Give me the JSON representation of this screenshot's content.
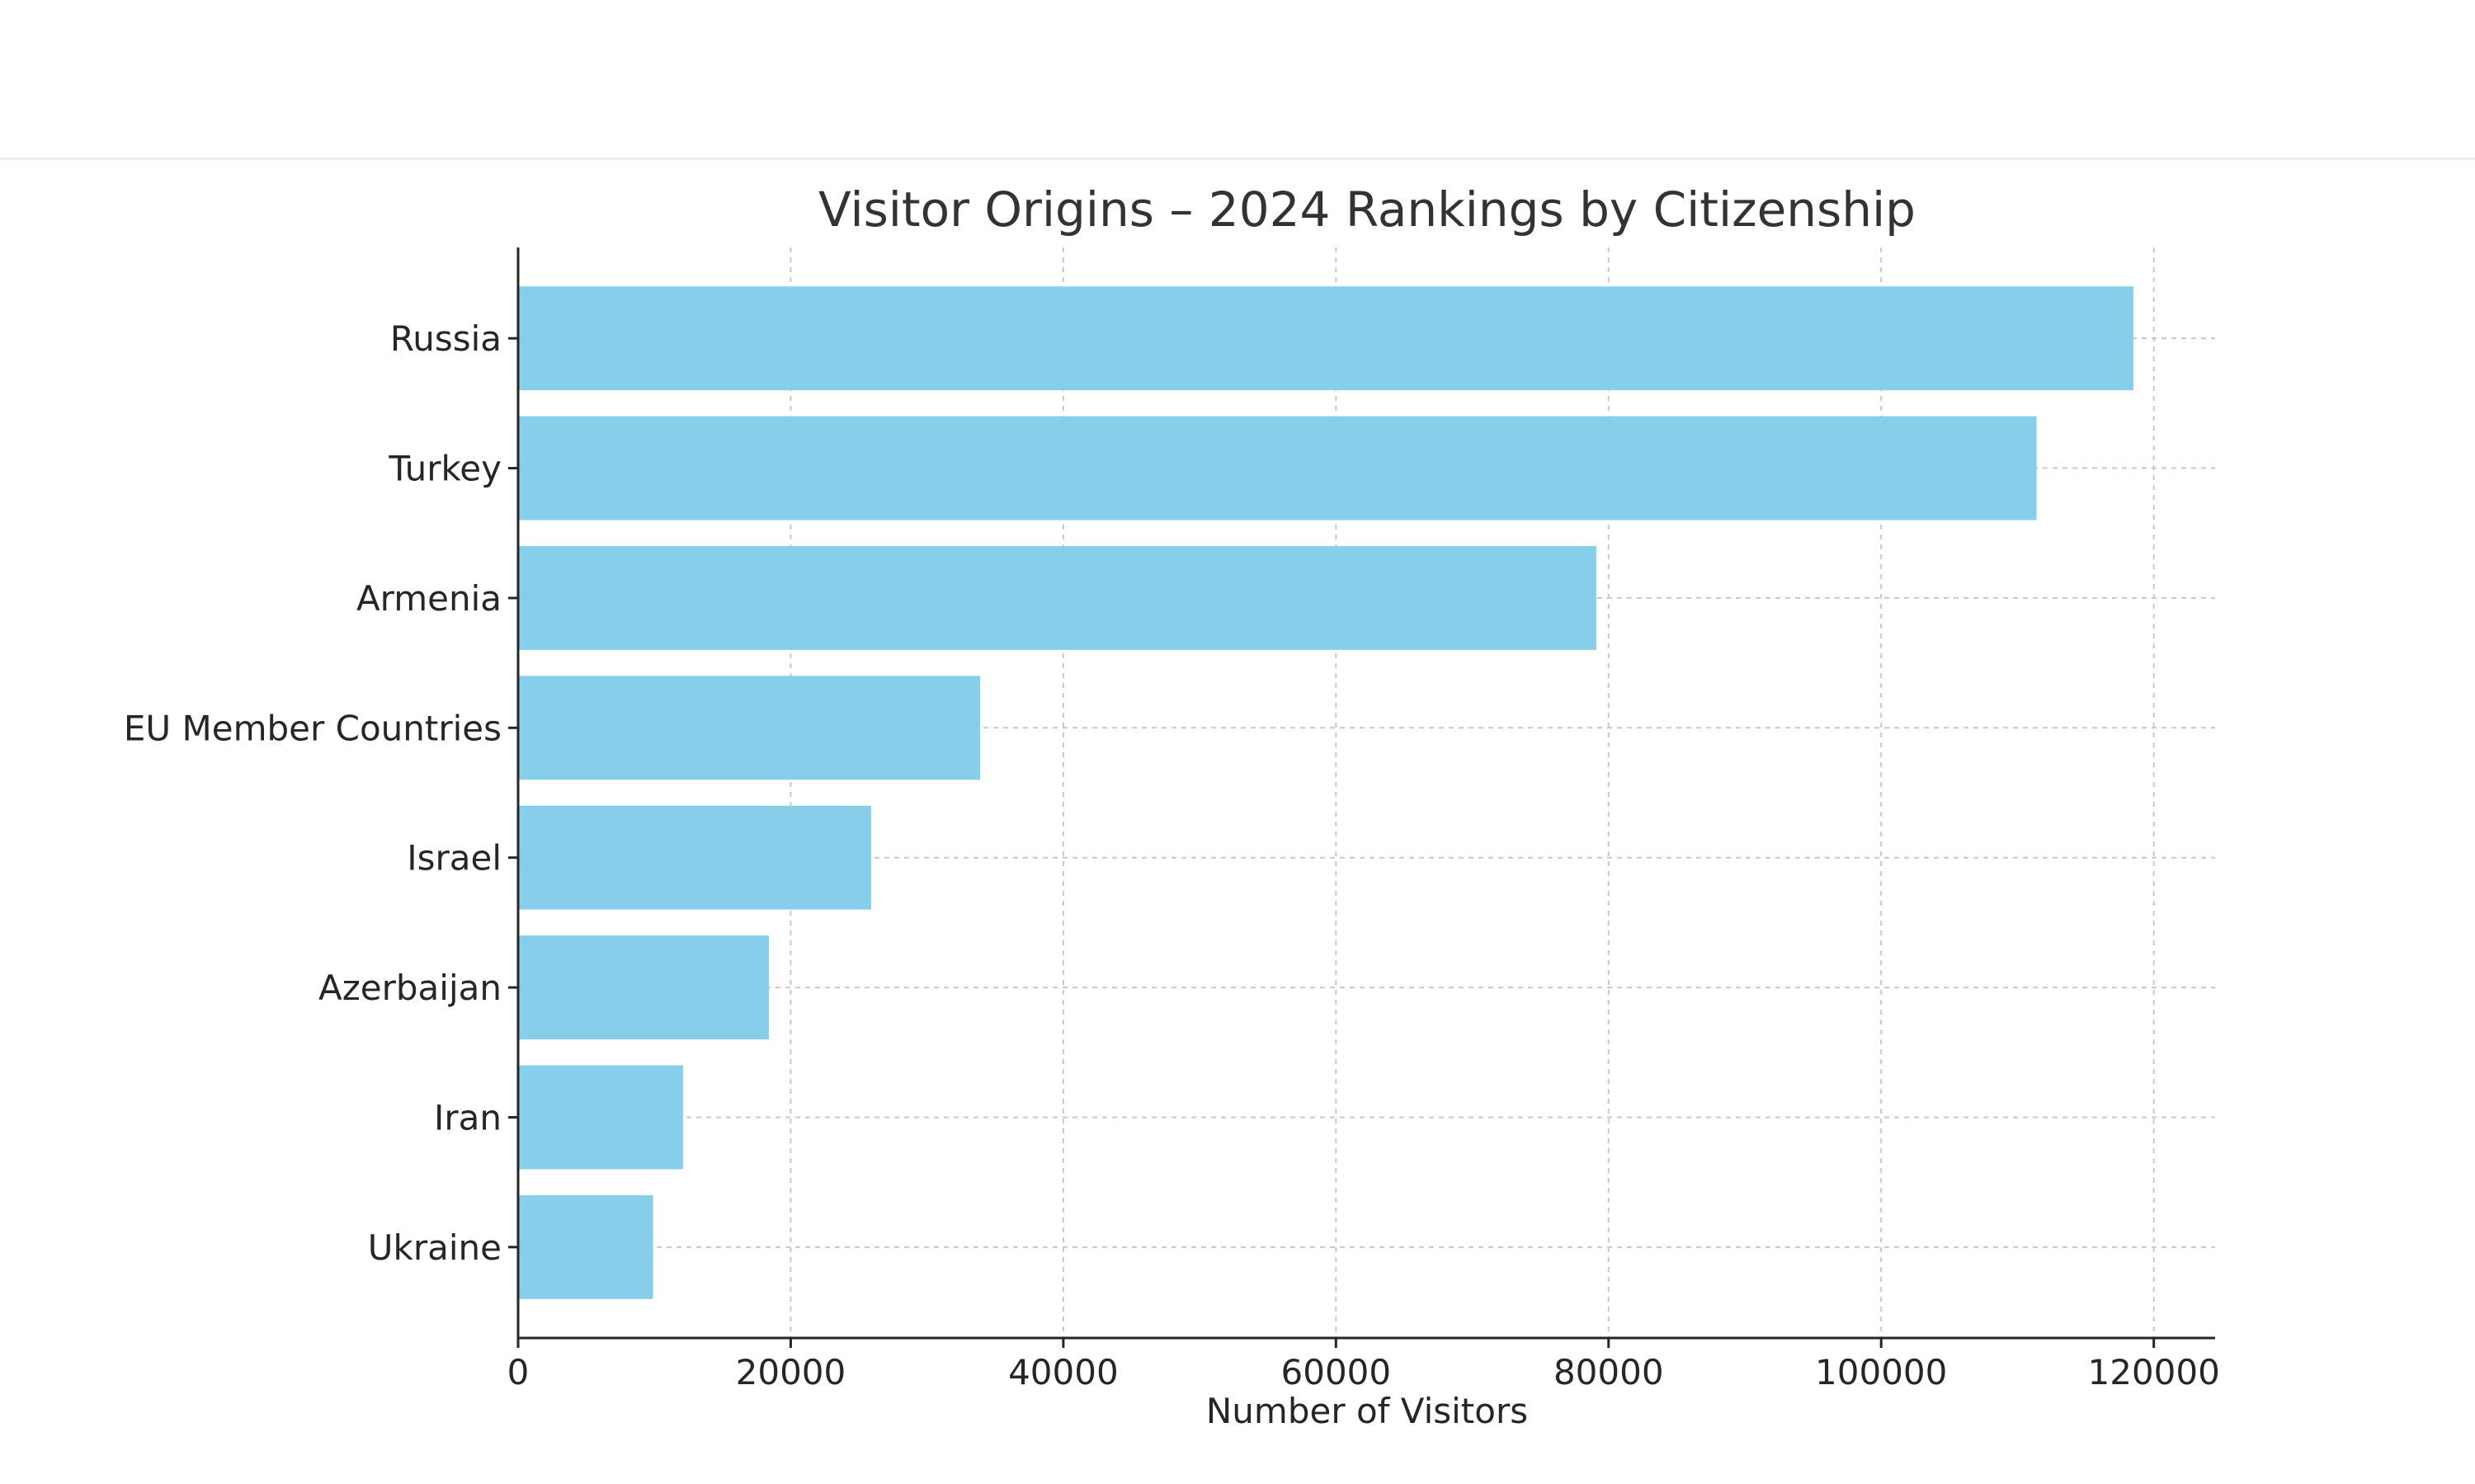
{
  "chart_data": {
    "type": "bar",
    "orientation": "horizontal",
    "title": "Visitor Origins – 2024 Rankings by Citizenship",
    "xlabel": "Number of Visitors",
    "ylabel": "",
    "categories": [
      "Russia",
      "Turkey",
      "Armenia",
      "EU Member Countries",
      "Israel",
      "Azerbaijan",
      "Iran",
      "Ukraine"
    ],
    "values": [
      118500,
      111400,
      79100,
      33900,
      25900,
      18400,
      12100,
      9900
    ],
    "xlim": [
      0,
      124500
    ],
    "xticks": [
      0,
      20000,
      40000,
      60000,
      80000,
      100000,
      120000
    ],
    "xtick_labels": [
      "0",
      "20000",
      "40000",
      "60000",
      "80000",
      "100000",
      "120000"
    ],
    "grid": true,
    "bar_color": "#87ceeb"
  }
}
